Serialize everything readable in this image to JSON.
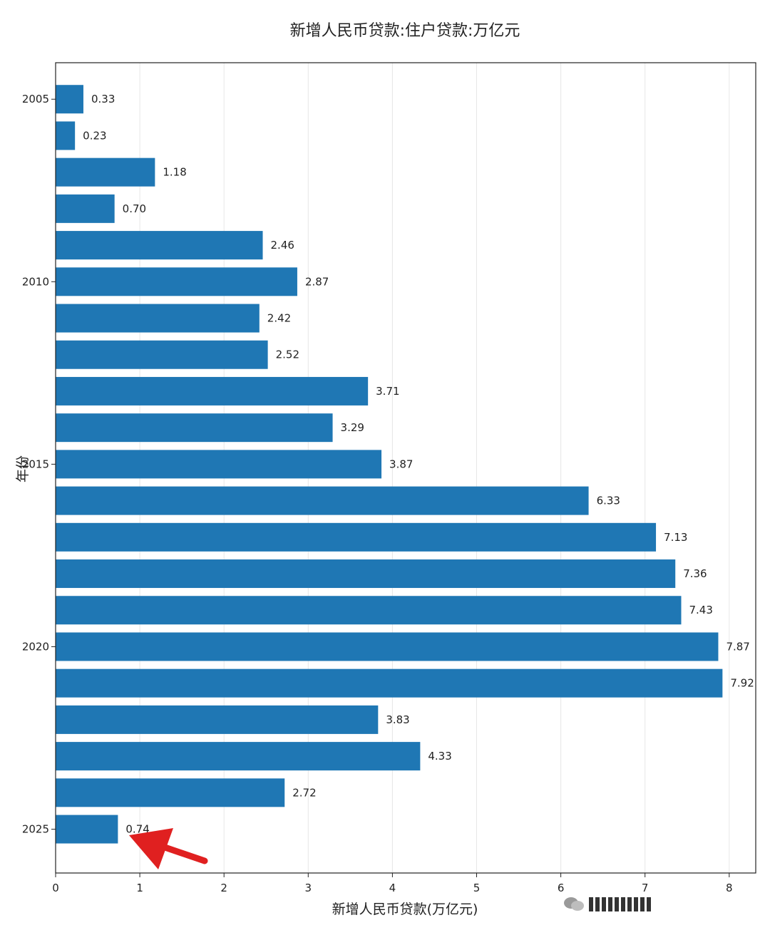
{
  "chart_data": {
    "type": "bar",
    "orientation": "horizontal",
    "title": "新增人民币贷款:住户贷款:万亿元",
    "xlabel": "新增人民币贷款(万亿元)",
    "ylabel": "年份",
    "categories": [
      2005,
      2006,
      2007,
      2008,
      2009,
      2010,
      2011,
      2012,
      2013,
      2014,
      2015,
      2016,
      2017,
      2018,
      2019,
      2020,
      2021,
      2022,
      2023,
      2024,
      2025
    ],
    "values": [
      0.33,
      0.23,
      1.18,
      0.7,
      2.46,
      2.87,
      2.42,
      2.52,
      3.71,
      3.29,
      3.87,
      6.33,
      7.13,
      7.36,
      7.43,
      7.87,
      7.92,
      3.83,
      4.33,
      2.72,
      0.74
    ],
    "value_labels": [
      "0.33",
      "0.23",
      "1.18",
      "0.70",
      "2.46",
      "2.87",
      "2.42",
      "2.52",
      "3.71",
      "3.29",
      "3.87",
      "6.33",
      "7.13",
      "7.36",
      "7.43",
      "7.87",
      "7.92",
      "3.83",
      "4.33",
      "2.72",
      "0.74"
    ],
    "x_ticks": [
      "0",
      "1",
      "2",
      "3",
      "4",
      "5",
      "6",
      "7",
      "8"
    ],
    "y_ticks": [
      "2005",
      "2010",
      "2015",
      "2020",
      "2025"
    ],
    "xlim": [
      0,
      8.3
    ],
    "ylim": [
      2004,
      2026.2
    ],
    "grid": "vertical",
    "bar_color": "#1f77b4",
    "annotation_arrow_color": "#e02020"
  }
}
